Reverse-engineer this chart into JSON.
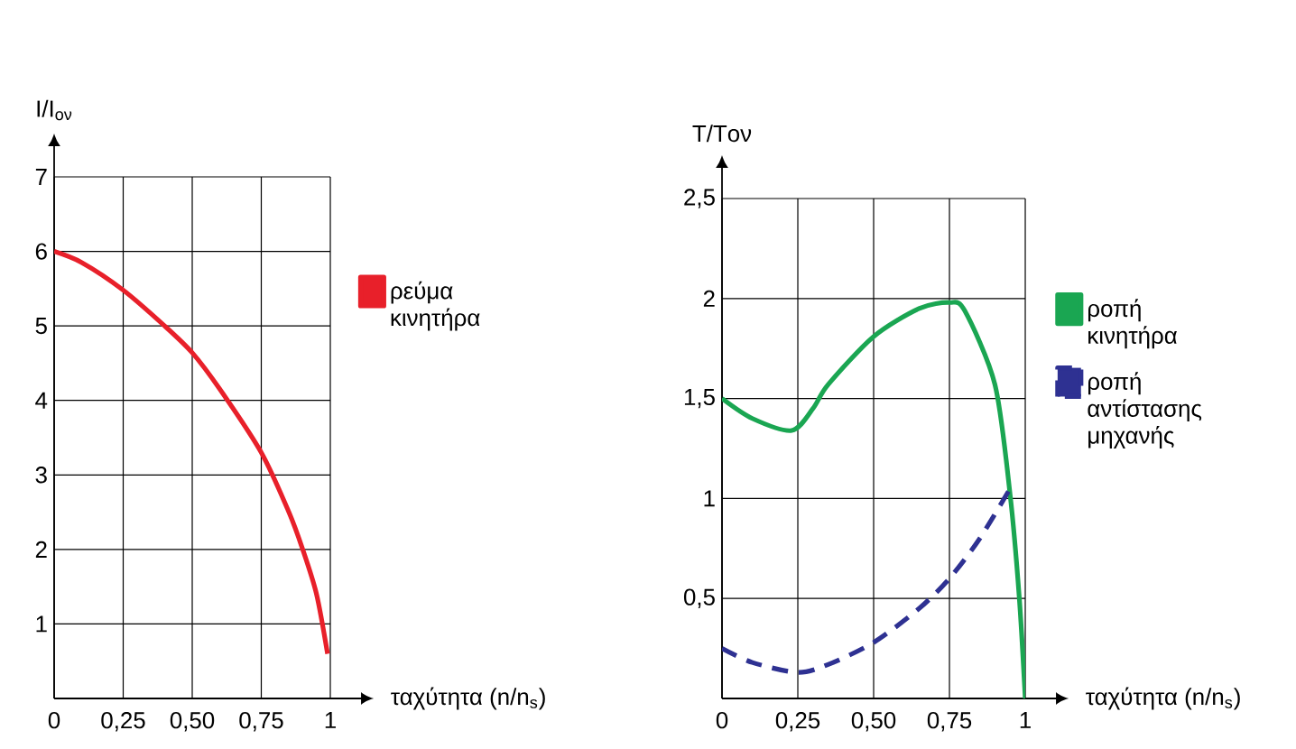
{
  "chart_data": [
    {
      "type": "line",
      "ylabel": "I/I$_{ον}$",
      "xlabel": "ταχύτητα (n/n$_{s}$)",
      "xlim": [
        0,
        1
      ],
      "ylim": [
        0,
        7
      ],
      "xticks": [
        0,
        {
          "value": 0.25,
          "label": "0,25"
        },
        {
          "value": 0.5,
          "label": "0,50"
        },
        {
          "value": 0.75,
          "label": "0,75"
        },
        1
      ],
      "yticks": [
        1,
        2,
        3,
        4,
        5,
        6,
        7
      ],
      "grid": true,
      "legend": "right",
      "series": [
        {
          "name": "ρεύμα κινητήρα",
          "color": "#e8202a",
          "line_style": "solid",
          "x": [
            0,
            0.1,
            0.25,
            0.4,
            0.5,
            0.6,
            0.75,
            0.85,
            0.9,
            0.95,
            0.99
          ],
          "values": [
            6,
            5.85,
            5.48,
            5.0,
            4.64,
            4.15,
            3.3,
            2.5,
            2.0,
            1.4,
            0.6
          ]
        }
      ]
    },
    {
      "type": "line",
      "ylabel": "T/Tον",
      "xlabel": "ταχύτητα (n/n$_{s}$)",
      "xlim": [
        0,
        1
      ],
      "ylim": [
        0,
        2.5
      ],
      "xticks": [
        0,
        {
          "value": 0.25,
          "label": "0,25"
        },
        {
          "value": 0.5,
          "label": "0,50"
        },
        {
          "value": 0.75,
          "label": "0,75"
        },
        1
      ],
      "yticks": [
        {
          "value": 0.5,
          "label": "0,5"
        },
        1,
        {
          "value": 1.5,
          "label": "1,5"
        },
        2,
        {
          "value": 2.5,
          "label": "2,5"
        }
      ],
      "grid": true,
      "legend": "right",
      "series": [
        {
          "name": "ροπή κινητήρα",
          "color": "#1aa652",
          "line_style": "solid",
          "x": [
            0,
            0.1,
            0.23,
            0.3,
            0.35,
            0.5,
            0.65,
            0.75,
            0.8,
            0.9,
            0.95,
            0.98,
            1
          ],
          "values": [
            1.5,
            1.4,
            1.34,
            1.45,
            1.57,
            1.81,
            1.95,
            1.98,
            1.94,
            1.57,
            1.02,
            0.51,
            0
          ]
        },
        {
          "name": "ροπή αντίστασης μηχανής",
          "color": "#2e3192",
          "line_style": "dashed",
          "x": [
            0,
            0.1,
            0.25,
            0.35,
            0.5,
            0.65,
            0.75,
            0.85,
            0.95
          ],
          "values": [
            0.25,
            0.18,
            0.13,
            0.17,
            0.28,
            0.45,
            0.6,
            0.8,
            1.05
          ]
        }
      ]
    }
  ]
}
